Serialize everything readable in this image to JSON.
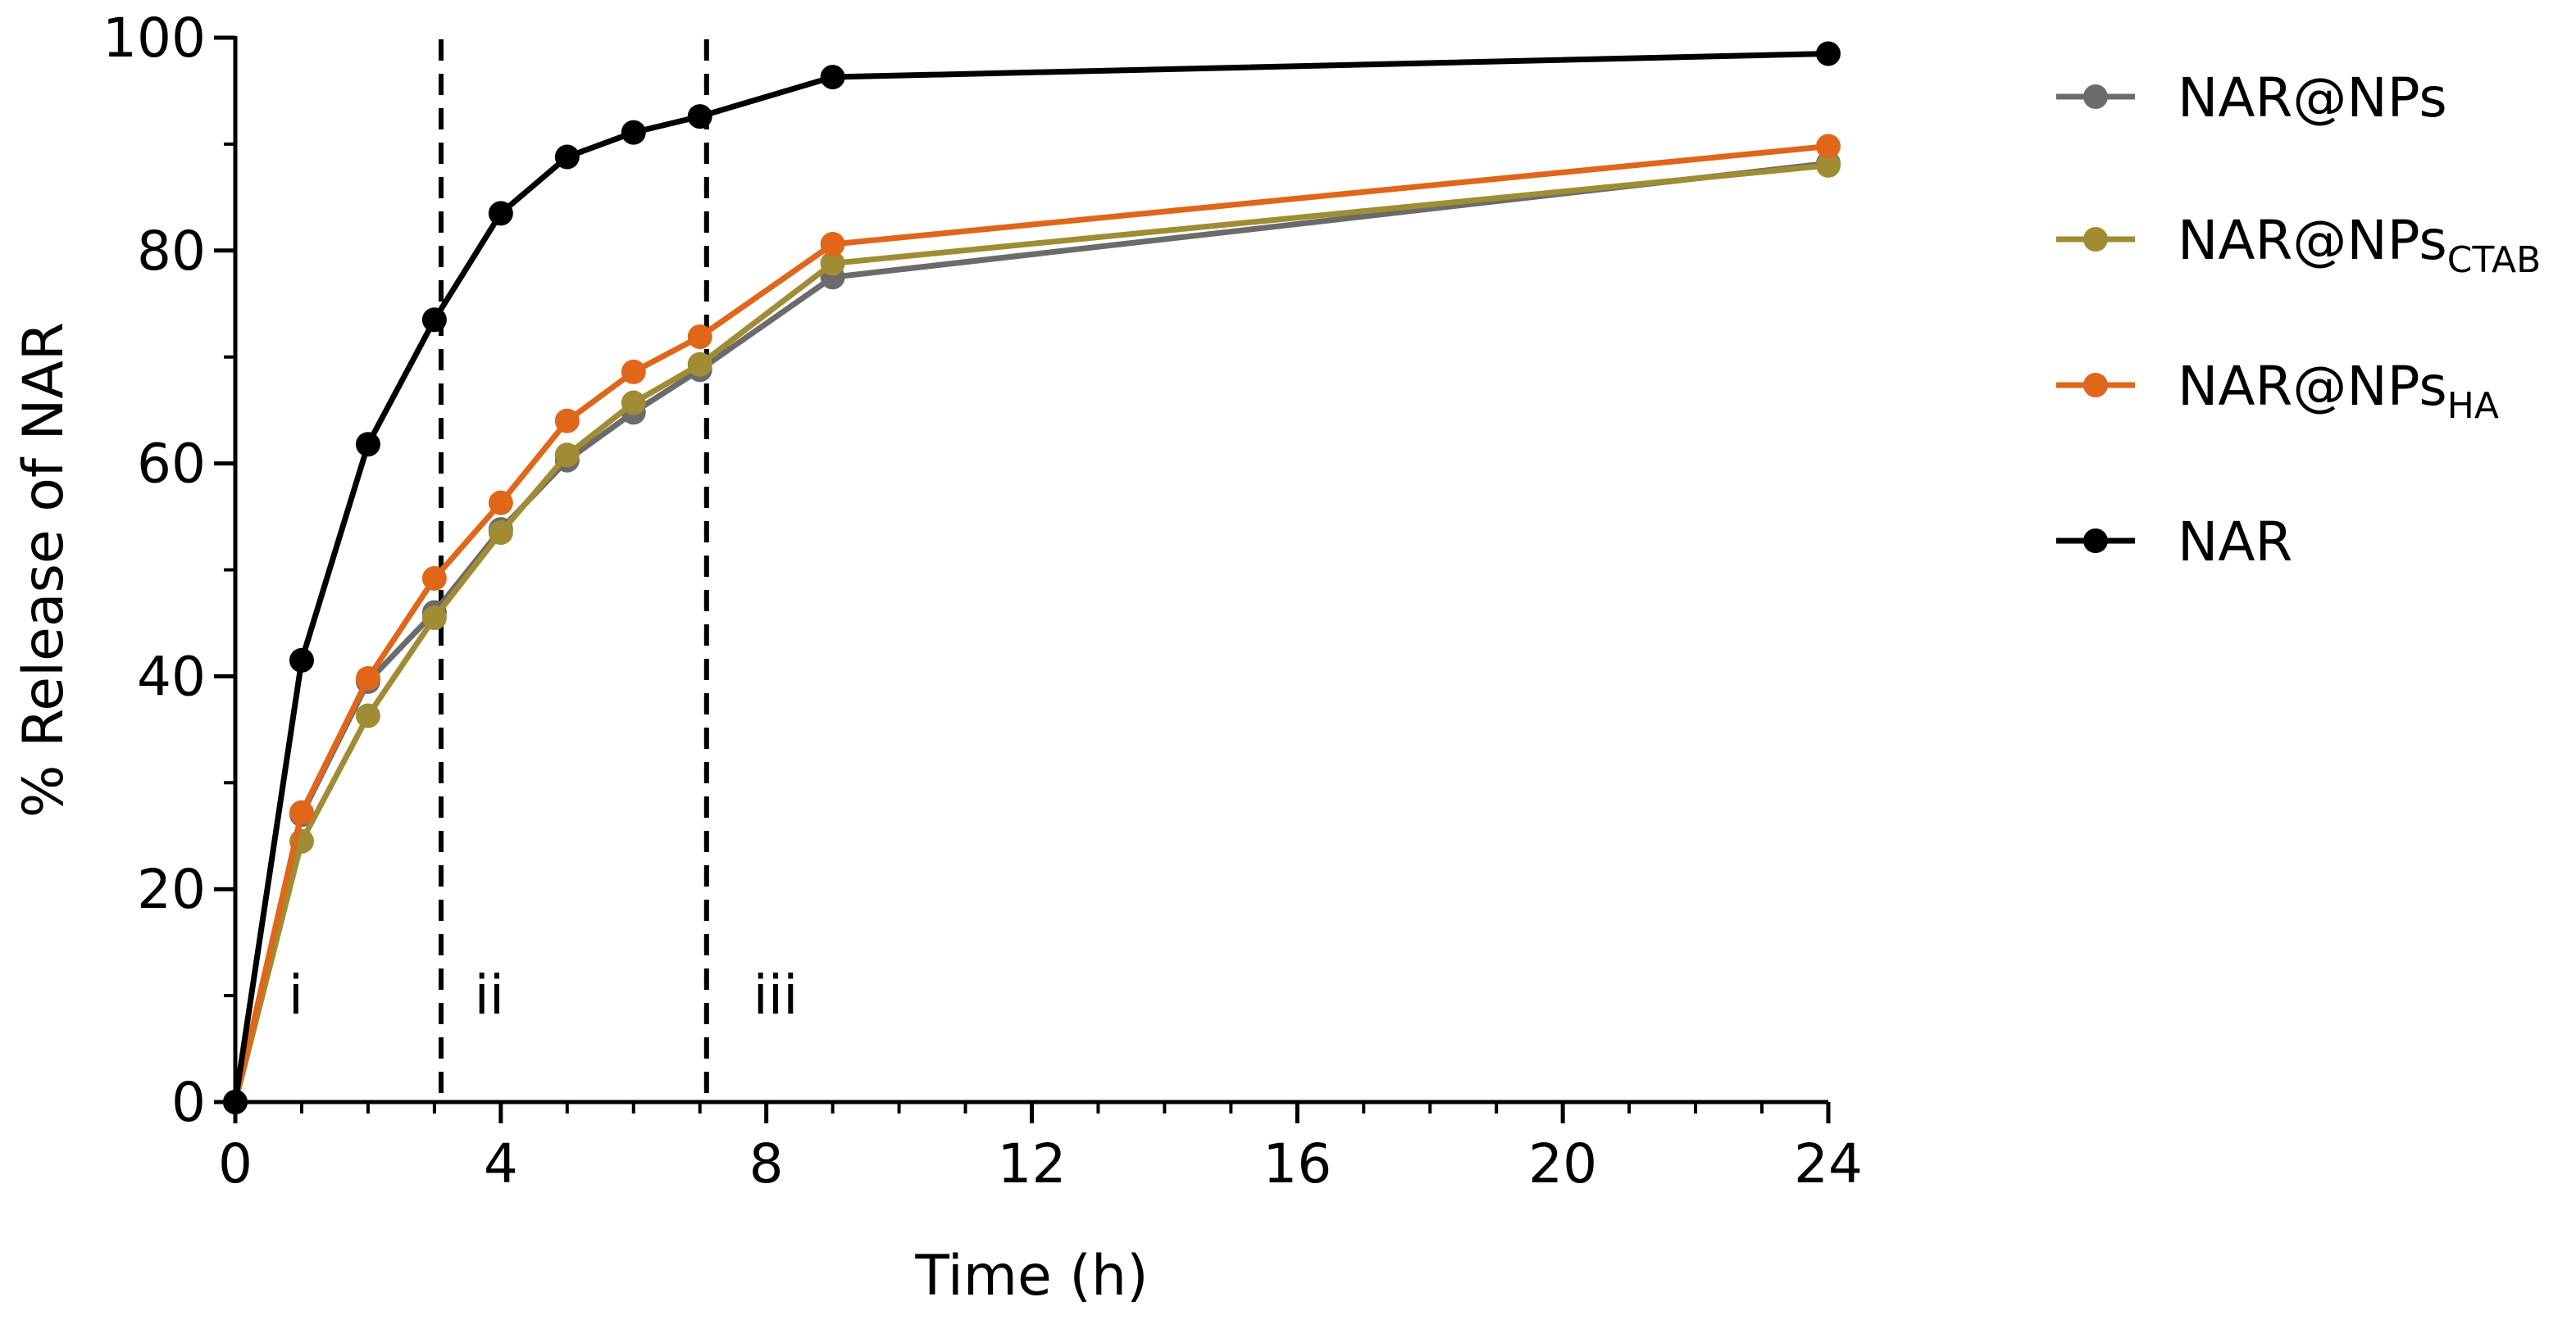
{
  "chart_data": {
    "type": "line",
    "title": "",
    "xlabel": "Time (h)",
    "ylabel": "% Release of NAR",
    "xlim": [
      0,
      24
    ],
    "ylim": [
      0,
      100
    ],
    "xticks": [
      0,
      4,
      8,
      12,
      16,
      20,
      24
    ],
    "xtick_labels": [
      "0",
      "4",
      "8",
      "12",
      "16",
      "20",
      "24"
    ],
    "yticks": [
      0,
      20,
      40,
      60,
      80,
      100
    ],
    "ytick_labels": [
      "0",
      "20",
      "40",
      "60",
      "80",
      "100"
    ],
    "x_minor_step": 1,
    "y_minor_step": 10,
    "grid": false,
    "legend_position": "right",
    "vlines": [
      3.1,
      7.1
    ],
    "region_labels": [
      {
        "text": "i",
        "x": 0.8,
        "y": 10
      },
      {
        "text": "ii",
        "x": 3.6,
        "y": 10
      },
      {
        "text": "iii",
        "x": 7.8,
        "y": 10
      }
    ],
    "series": [
      {
        "name": "NAR@NPs",
        "name_base": "NAR@NPs",
        "name_sub": "",
        "color": "#6b6b6b",
        "x": [
          0,
          1,
          2,
          3,
          4,
          5,
          6,
          7,
          9,
          24
        ],
        "values": [
          0,
          27,
          39.5,
          46,
          53.8,
          60.3,
          64.8,
          68.8,
          77.5,
          88.2
        ]
      },
      {
        "name": "NAR@NPsCTAB",
        "name_base": "NAR@NPs",
        "name_sub": "CTAB",
        "color": "#a08c34",
        "x": [
          0,
          1,
          2,
          3,
          4,
          5,
          6,
          7,
          9,
          24
        ],
        "values": [
          0,
          24.5,
          36.3,
          45.5,
          53.5,
          60.8,
          65.7,
          69.3,
          78.8,
          88
        ]
      },
      {
        "name": "NAR@NPsHA",
        "name_base": "NAR@NPs",
        "name_sub": "HA",
        "color": "#e0661a",
        "x": [
          0,
          1,
          2,
          3,
          4,
          5,
          6,
          7,
          9,
          24
        ],
        "values": [
          0,
          27.2,
          39.8,
          49.2,
          56.3,
          64,
          68.6,
          71.9,
          80.6,
          89.8
        ]
      },
      {
        "name": "NAR",
        "name_base": "NAR",
        "name_sub": "",
        "color": "#000000",
        "x": [
          0,
          1,
          2,
          3,
          4,
          5,
          6,
          7,
          9,
          24
        ],
        "values": [
          0,
          41.5,
          61.8,
          73.5,
          83.5,
          88.8,
          91.1,
          92.6,
          96.3,
          98.5
        ]
      }
    ]
  }
}
